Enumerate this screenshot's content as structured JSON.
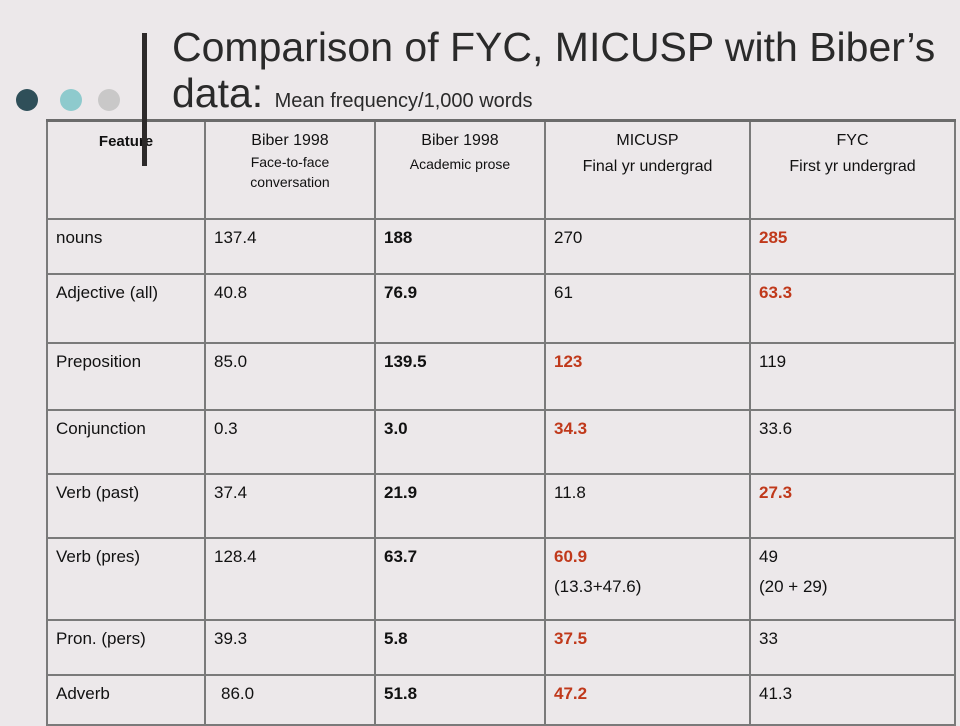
{
  "title": {
    "main": "Comparison of FYC, MICUSP with Biber’s data:",
    "subtitle": "Mean frequency/1,000 words"
  },
  "headers": {
    "feature": "Feature",
    "biber_conv": [
      "Biber 1998",
      "Face-to-face conversation"
    ],
    "biber_acad": [
      "Biber 1998",
      "Academic prose"
    ],
    "micusp": [
      "MICUSP",
      "Final yr undergrad"
    ],
    "fyc": [
      "FYC",
      "First yr undergrad"
    ]
  },
  "rows": [
    {
      "feature": "nouns",
      "biber_conv": "137.4",
      "biber_acad": "188",
      "micusp": "270",
      "fyc": "285"
    },
    {
      "feature": "Adjective (all)",
      "biber_conv": "40.8",
      "biber_acad": "76.9",
      "micusp": "61",
      "fyc": "63.3"
    },
    {
      "feature": "Preposition",
      "biber_conv": "85.0",
      "biber_acad": "139.5",
      "micusp": "123",
      "fyc": "119"
    },
    {
      "feature": "Conjunction",
      "biber_conv": "0.3",
      "biber_acad": "3.0",
      "micusp": "34.3",
      "fyc": "33.6"
    },
    {
      "feature": "Verb (past)",
      "biber_conv": "37.4",
      "biber_acad": "21.9",
      "micusp": "11.8",
      "fyc": "27.3"
    },
    {
      "feature": "Verb (pres)",
      "biber_conv": "128.4",
      "biber_acad": "63.7",
      "micusp": "60.9",
      "micusp_breakdown": "(13.3+47.6)",
      "fyc": "49",
      "fyc_breakdown": "(20 + 29)"
    },
    {
      "feature": "Pron. (pers)",
      "biber_conv": "39.3",
      "biber_acad": "5.8",
      "micusp": "37.5",
      "fyc": "33"
    },
    {
      "feature": "Adverb",
      "biber_conv": "86.0",
      "biber_acad": "51.8",
      "micusp": "47.2",
      "fyc": "41.3"
    }
  ],
  "colors": {
    "background": "#ece8ea",
    "highlight": "#c0391b",
    "dot_dark": "#2f4f59",
    "dot_teal": "#8ecacd",
    "dot_grey": "#c9c8c8"
  }
}
